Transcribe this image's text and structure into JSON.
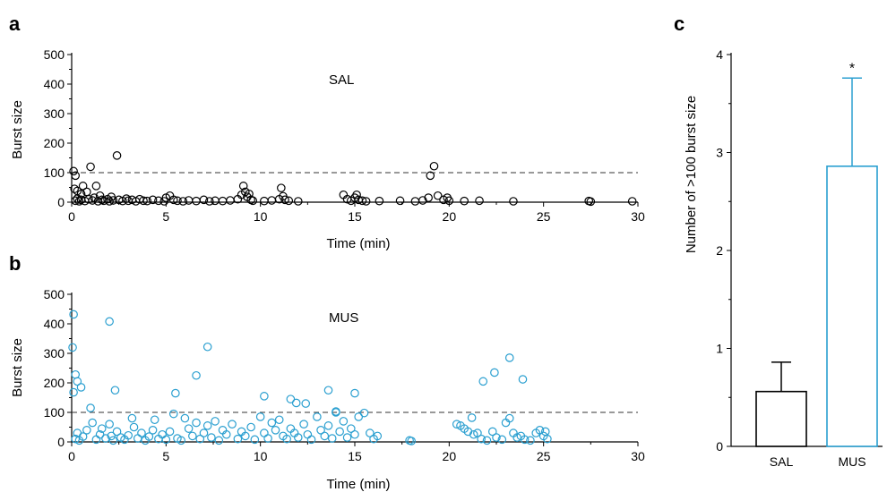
{
  "chart_data": [
    {
      "panel_letter": "a",
      "type": "scatter",
      "label": "SAL",
      "xlabel": "Time (min)",
      "ylabel": "Burst size",
      "xlim": [
        0,
        30
      ],
      "ylim": [
        0,
        500
      ],
      "xticks": [
        0,
        5,
        10,
        15,
        20,
        25,
        30
      ],
      "yticks": [
        0,
        100,
        200,
        300,
        400,
        500
      ],
      "threshold": 100,
      "color": "#000000",
      "points": [
        [
          0.1,
          105
        ],
        [
          0.2,
          90
        ],
        [
          0.3,
          38
        ],
        [
          0.15,
          45
        ],
        [
          0.5,
          28
        ],
        [
          0.6,
          55
        ],
        [
          0.8,
          35
        ],
        [
          1.0,
          120
        ],
        [
          1.3,
          55
        ],
        [
          2.4,
          158
        ],
        [
          0.2,
          5
        ],
        [
          0.3,
          12
        ],
        [
          0.4,
          3
        ],
        [
          0.5,
          8
        ],
        [
          0.7,
          4
        ],
        [
          0.9,
          10
        ],
        [
          1.1,
          6
        ],
        [
          1.2,
          15
        ],
        [
          1.4,
          3
        ],
        [
          1.5,
          22
        ],
        [
          1.6,
          8
        ],
        [
          1.7,
          5
        ],
        [
          1.9,
          10
        ],
        [
          2.0,
          3
        ],
        [
          2.1,
          18
        ],
        [
          2.2,
          6
        ],
        [
          2.5,
          8
        ],
        [
          2.7,
          4
        ],
        [
          2.9,
          12
        ],
        [
          3.0,
          5
        ],
        [
          3.2,
          8
        ],
        [
          3.4,
          3
        ],
        [
          3.6,
          10
        ],
        [
          3.8,
          5
        ],
        [
          4.0,
          4
        ],
        [
          4.3,
          8
        ],
        [
          4.6,
          5
        ],
        [
          4.9,
          3
        ],
        [
          5.0,
          15
        ],
        [
          5.2,
          22
        ],
        [
          5.4,
          8
        ],
        [
          5.6,
          5
        ],
        [
          5.9,
          3
        ],
        [
          6.2,
          6
        ],
        [
          6.6,
          4
        ],
        [
          7.0,
          8
        ],
        [
          7.3,
          3
        ],
        [
          7.6,
          5
        ],
        [
          8.0,
          4
        ],
        [
          8.4,
          6
        ],
        [
          8.8,
          10
        ],
        [
          9.0,
          25
        ],
        [
          9.1,
          55
        ],
        [
          9.2,
          35
        ],
        [
          9.3,
          18
        ],
        [
          9.4,
          28
        ],
        [
          9.5,
          8
        ],
        [
          9.6,
          5
        ],
        [
          10.2,
          4
        ],
        [
          10.6,
          6
        ],
        [
          11.0,
          10
        ],
        [
          11.1,
          48
        ],
        [
          11.2,
          20
        ],
        [
          11.3,
          8
        ],
        [
          11.5,
          5
        ],
        [
          12.0,
          3
        ],
        [
          14.4,
          25
        ],
        [
          14.6,
          10
        ],
        [
          14.8,
          5
        ],
        [
          15.0,
          15
        ],
        [
          15.1,
          25
        ],
        [
          15.2,
          8
        ],
        [
          15.4,
          5
        ],
        [
          15.6,
          3
        ],
        [
          16.3,
          4
        ],
        [
          17.4,
          5
        ],
        [
          18.2,
          3
        ],
        [
          18.6,
          6
        ],
        [
          18.9,
          15
        ],
        [
          19.0,
          90
        ],
        [
          19.2,
          122
        ],
        [
          19.4,
          22
        ],
        [
          19.7,
          8
        ],
        [
          19.9,
          15
        ],
        [
          20.0,
          5
        ],
        [
          20.8,
          4
        ],
        [
          21.6,
          5
        ],
        [
          23.4,
          3
        ],
        [
          27.4,
          4
        ],
        [
          27.5,
          2
        ],
        [
          29.7,
          3
        ]
      ]
    },
    {
      "panel_letter": "b",
      "type": "scatter",
      "label": "MUS",
      "xlabel": "Time (min)",
      "ylabel": "Burst size",
      "xlim": [
        0,
        30
      ],
      "ylim": [
        0,
        500
      ],
      "xticks": [
        0,
        5,
        10,
        15,
        20,
        25,
        30
      ],
      "yticks": [
        0,
        100,
        200,
        300,
        400,
        500
      ],
      "threshold": 100,
      "color": "#2a9fd0",
      "points": [
        [
          0.1,
          432
        ],
        [
          0.05,
          320
        ],
        [
          0.2,
          228
        ],
        [
          0.3,
          205
        ],
        [
          0.5,
          185
        ],
        [
          0.1,
          168
        ],
        [
          2.0,
          408
        ],
        [
          2.3,
          175
        ],
        [
          5.5,
          165
        ],
        [
          6.6,
          225
        ],
        [
          7.2,
          322
        ],
        [
          10.2,
          155
        ],
        [
          11.6,
          145
        ],
        [
          11.9,
          132
        ],
        [
          12.4,
          130
        ],
        [
          13.6,
          175
        ],
        [
          14.0,
          103
        ],
        [
          15.0,
          165
        ],
        [
          21.8,
          205
        ],
        [
          22.4,
          235
        ],
        [
          23.2,
          285
        ],
        [
          23.9,
          212
        ],
        [
          0.2,
          10
        ],
        [
          0.3,
          30
        ],
        [
          0.4,
          5
        ],
        [
          0.6,
          18
        ],
        [
          0.8,
          40
        ],
        [
          1.0,
          115
        ],
        [
          1.1,
          65
        ],
        [
          1.3,
          8
        ],
        [
          1.5,
          25
        ],
        [
          1.6,
          45
        ],
        [
          1.8,
          12
        ],
        [
          2.0,
          60
        ],
        [
          2.1,
          20
        ],
        [
          2.2,
          5
        ],
        [
          2.4,
          35
        ],
        [
          2.6,
          15
        ],
        [
          2.8,
          8
        ],
        [
          3.0,
          22
        ],
        [
          3.2,
          80
        ],
        [
          3.3,
          50
        ],
        [
          3.5,
          12
        ],
        [
          3.7,
          30
        ],
        [
          3.9,
          5
        ],
        [
          4.1,
          18
        ],
        [
          4.3,
          40
        ],
        [
          4.4,
          75
        ],
        [
          4.6,
          10
        ],
        [
          4.8,
          25
        ],
        [
          5.0,
          8
        ],
        [
          5.2,
          35
        ],
        [
          5.4,
          95
        ],
        [
          5.6,
          12
        ],
        [
          5.8,
          5
        ],
        [
          6.0,
          80
        ],
        [
          6.2,
          45
        ],
        [
          6.4,
          20
        ],
        [
          6.6,
          65
        ],
        [
          6.8,
          10
        ],
        [
          7.0,
          30
        ],
        [
          7.2,
          55
        ],
        [
          7.4,
          15
        ],
        [
          7.6,
          70
        ],
        [
          7.8,
          5
        ],
        [
          8.0,
          40
        ],
        [
          8.2,
          25
        ],
        [
          8.5,
          60
        ],
        [
          8.8,
          10
        ],
        [
          9.0,
          35
        ],
        [
          9.2,
          20
        ],
        [
          9.5,
          50
        ],
        [
          9.7,
          8
        ],
        [
          10.0,
          85
        ],
        [
          10.2,
          30
        ],
        [
          10.4,
          12
        ],
        [
          10.6,
          65
        ],
        [
          10.8,
          40
        ],
        [
          11.0,
          75
        ],
        [
          11.2,
          20
        ],
        [
          11.4,
          10
        ],
        [
          11.6,
          45
        ],
        [
          11.8,
          30
        ],
        [
          12.0,
          15
        ],
        [
          12.3,
          60
        ],
        [
          12.5,
          25
        ],
        [
          12.7,
          8
        ],
        [
          13.0,
          85
        ],
        [
          13.2,
          40
        ],
        [
          13.4,
          20
        ],
        [
          13.6,
          55
        ],
        [
          13.8,
          12
        ],
        [
          14.0,
          100
        ],
        [
          14.2,
          35
        ],
        [
          14.4,
          70
        ],
        [
          14.6,
          15
        ],
        [
          14.8,
          45
        ],
        [
          15.0,
          25
        ],
        [
          15.2,
          85
        ],
        [
          15.5,
          98
        ],
        [
          15.8,
          30
        ],
        [
          16.0,
          10
        ],
        [
          16.2,
          20
        ],
        [
          17.9,
          5
        ],
        [
          18.0,
          3
        ],
        [
          20.4,
          60
        ],
        [
          20.6,
          55
        ],
        [
          20.8,
          45
        ],
        [
          21.0,
          35
        ],
        [
          21.2,
          82
        ],
        [
          21.3,
          25
        ],
        [
          21.5,
          30
        ],
        [
          21.7,
          10
        ],
        [
          22.0,
          5
        ],
        [
          22.3,
          35
        ],
        [
          22.5,
          15
        ],
        [
          22.8,
          8
        ],
        [
          23.0,
          65
        ],
        [
          23.2,
          80
        ],
        [
          23.4,
          30
        ],
        [
          23.6,
          15
        ],
        [
          23.8,
          20
        ],
        [
          24.0,
          8
        ],
        [
          24.3,
          5
        ],
        [
          24.6,
          30
        ],
        [
          24.8,
          40
        ],
        [
          25.0,
          20
        ],
        [
          25.1,
          35
        ],
        [
          25.2,
          10
        ]
      ]
    },
    {
      "panel_letter": "c",
      "type": "bar",
      "ylabel": "Number of >100 burst size",
      "categories": [
        "SAL",
        "MUS"
      ],
      "values": [
        0.56,
        2.86
      ],
      "errors": [
        0.3,
        0.9
      ],
      "colors": [
        "#000000",
        "#2a9fd0"
      ],
      "ylim": [
        0,
        4
      ],
      "yticks": [
        0,
        1,
        2,
        3,
        4
      ],
      "significance": [
        "",
        "*"
      ]
    }
  ]
}
